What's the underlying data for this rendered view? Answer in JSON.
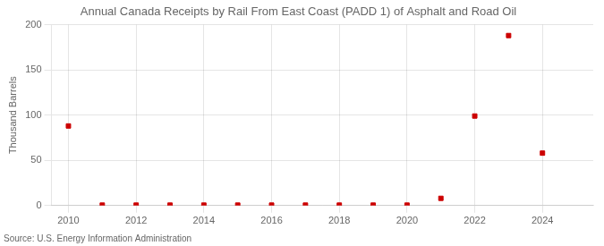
{
  "chart_data": {
    "type": "scatter",
    "title": "Annual Canada Receipts by Rail From East Coast (PADD 1) of Asphalt and Road Oil",
    "y_label": "Thousand Barrels",
    "annotations": [
      "Source: U.S. Energy Information Administration"
    ],
    "x": [
      2010,
      2011,
      2012,
      2013,
      2014,
      2015,
      2016,
      2017,
      2018,
      2019,
      2020,
      2021,
      2022,
      2023,
      2024
    ],
    "values": [
      88,
      0.5,
      0.5,
      0.5,
      0.5,
      0.5,
      0.5,
      0.5,
      0.5,
      0.5,
      0.5,
      8,
      99,
      188,
      58
    ],
    "color": "#cc0000",
    "marker": "square",
    "xlim": [
      2009.5,
      2025.5
    ],
    "xticks": [
      2010,
      2012,
      2014,
      2016,
      2018,
      2020,
      2022,
      2024
    ],
    "ylim": [
      0,
      200
    ],
    "yticks": [
      0,
      50,
      100,
      150,
      200
    ],
    "grid": true
  }
}
